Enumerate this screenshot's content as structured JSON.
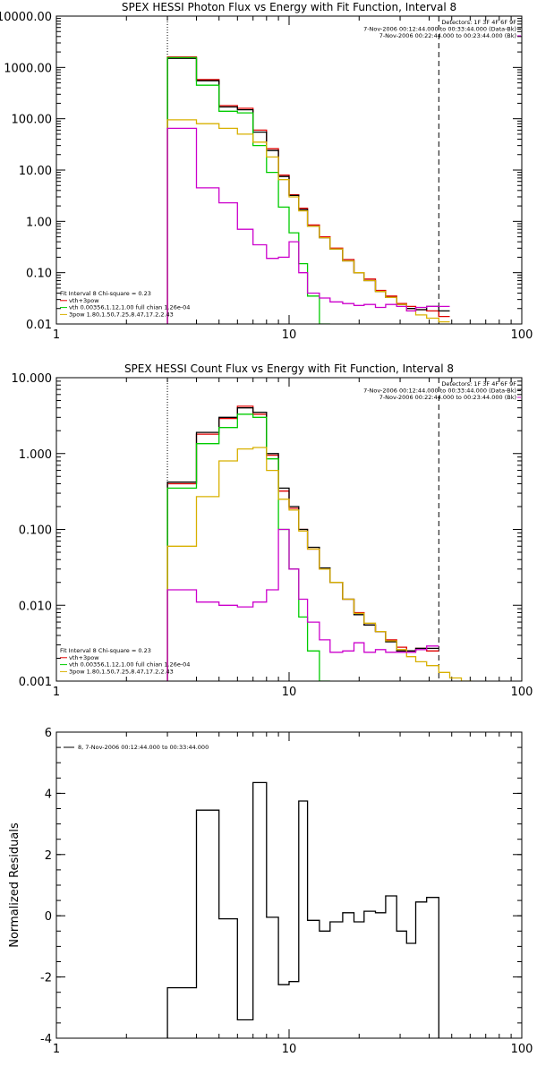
{
  "colors": {
    "black": "#000000",
    "red": "#e00000",
    "green": "#00cc00",
    "yellow": "#d8b000",
    "magenta": "#cc00cc"
  },
  "chart_data": [
    {
      "type": "line",
      "title": "SPEX HESSI Photon Flux vs Energy with Fit Function, Interval 8",
      "xscale": "log",
      "yscale": "log",
      "xlim": [
        1,
        100
      ],
      "ylim": [
        0.01,
        10000
      ],
      "xticks": [
        1,
        10,
        100
      ],
      "xtick_labels": [
        "1",
        "10",
        "100"
      ],
      "yticks": [
        0.01,
        0.1,
        1,
        10,
        100,
        1000,
        10000
      ],
      "ytick_labels": [
        "0.01",
        "0.10",
        "1.00",
        "10.00",
        "100.00",
        "1000.00",
        "10000.00"
      ],
      "vlines": [
        {
          "x": 3.0,
          "style": "dotted"
        },
        {
          "x": 44.0,
          "style": "dashed"
        }
      ],
      "header_lines": [
        "Detectors: 1F 3F 4F 6F 9F",
        "7-Nov-2006 00:12:44.000 to 00:33:44.000 (Data-Bk)",
        "7-Nov-2006 00:22:44.000 to 00:23:44.000 (Bk)"
      ],
      "legend_lines": [
        "Fit Interval  8    Chi-square = 0.23",
        "vth+3pow",
        "vth 0.00356,1.12,1.00  full chian 1.26e-04",
        "3pow 1.80,1.50,7.25,8.47,17.2,2.43"
      ],
      "legend_colors": [
        "black",
        "red",
        "green",
        "yellow"
      ],
      "edges": [
        3.0,
        4.0,
        5.0,
        6.0,
        7.0,
        8.0,
        9.0,
        10.0,
        11.0,
        12.0,
        13.5,
        15.0,
        17.0,
        19.0,
        21.0,
        23.5,
        26.0,
        29.0,
        32.0,
        35.0,
        39.0,
        44.0,
        49.0
      ],
      "series": [
        {
          "color": "red",
          "values": [
            1600,
            580,
            180,
            160,
            60,
            26,
            8.0,
            3.3,
            1.8,
            0.85,
            0.5,
            0.3,
            0.18,
            0.1,
            0.075,
            0.045,
            0.035,
            0.025,
            0.022,
            0.019,
            0.018,
            0.014
          ]
        },
        {
          "color": "black",
          "values": [
            1500,
            550,
            170,
            150,
            55,
            24,
            7.5,
            3.2,
            1.7,
            0.8,
            0.48,
            0.29,
            0.17,
            0.1,
            0.07,
            0.043,
            0.033,
            0.024,
            0.02,
            0.019,
            0.022,
            0.018
          ]
        },
        {
          "color": "green",
          "values": [
            1550,
            450,
            140,
            130,
            30,
            9,
            1.9,
            0.6,
            0.15,
            0.035,
            0.01
          ]
        },
        {
          "color": "yellow",
          "values": [
            95,
            80,
            65,
            50,
            35,
            18,
            6.5,
            3.0,
            1.6,
            0.8,
            0.48,
            0.29,
            0.17,
            0.1,
            0.07,
            0.043,
            0.033,
            0.024,
            0.018,
            0.015,
            0.013,
            0.011,
            0.01
          ]
        },
        {
          "color": "magenta",
          "values": [
            65,
            4.5,
            2.3,
            0.7,
            0.35,
            0.19,
            0.2,
            0.4,
            0.1,
            0.04,
            0.032,
            0.027,
            0.025,
            0.023,
            0.024,
            0.021,
            0.024,
            0.022,
            0.018,
            0.021,
            0.022,
            0.022
          ]
        }
      ]
    },
    {
      "type": "line",
      "title": "SPEX HESSI Count Flux vs Energy with Fit Function, Interval 8",
      "xscale": "log",
      "yscale": "log",
      "xlim": [
        1,
        100
      ],
      "ylim": [
        0.001,
        10
      ],
      "xticks": [
        1,
        10,
        100
      ],
      "xtick_labels": [
        "1",
        "10",
        "100"
      ],
      "yticks": [
        0.001,
        0.01,
        0.1,
        1,
        10
      ],
      "ytick_labels": [
        "0.001",
        "0.010",
        "0.100",
        "1.000",
        "10.000"
      ],
      "vlines": [
        {
          "x": 3.0,
          "style": "dotted"
        },
        {
          "x": 44.0,
          "style": "dashed"
        }
      ],
      "header_lines": [
        "Detectors: 1F 3F 4F 6F 9F",
        "7-Nov-2006 00:12:44.000 to 00:33:44.000 (Data-Bk)",
        "7-Nov-2006 00:22:44.000 to 00:23:44.000 (Bk)"
      ],
      "legend_lines": [
        "Fit Interval  8    Chi-square = 0.23",
        "vth+3pow",
        "vth 0.00356,1.12,1.00  full chian 1.26e-04",
        "3pow 1.80,1.50,7.25,8.47,17.2,2.43"
      ],
      "legend_colors": [
        "black",
        "red",
        "green",
        "yellow"
      ],
      "edges": [
        3.0,
        4.0,
        5.0,
        6.0,
        7.0,
        8.0,
        9.0,
        10.0,
        11.0,
        12.0,
        13.5,
        15.0,
        17.0,
        19.0,
        21.0,
        23.5,
        26.0,
        29.0,
        32.0,
        35.0,
        39.0,
        44.0,
        49.0,
        55.0,
        61.0
      ],
      "series": [
        {
          "color": "red",
          "values": [
            0.4,
            1.8,
            2.9,
            4.2,
            3.3,
            0.95,
            0.32,
            0.19,
            0.1,
            0.055,
            0.03,
            0.02,
            0.012,
            0.008,
            0.0055,
            0.0045,
            0.0035,
            0.0028,
            0.0025,
            0.0027,
            0.0025
          ]
        },
        {
          "color": "black",
          "values": [
            0.42,
            1.9,
            3.0,
            4.0,
            3.5,
            1.0,
            0.35,
            0.2,
            0.1,
            0.058,
            0.031,
            0.02,
            0.012,
            0.0075,
            0.0055,
            0.0045,
            0.0033,
            0.0025,
            0.0025,
            0.0027,
            0.0027
          ]
        },
        {
          "color": "green",
          "values": [
            0.35,
            1.35,
            2.2,
            3.3,
            3.0,
            0.85,
            0.1,
            0.03,
            0.007,
            0.0025,
            0.001
          ]
        },
        {
          "color": "yellow",
          "values": [
            0.06,
            0.27,
            0.8,
            1.15,
            1.2,
            0.6,
            0.25,
            0.18,
            0.095,
            0.055,
            0.03,
            0.02,
            0.012,
            0.0078,
            0.0058,
            0.0045,
            0.0034,
            0.0026,
            0.0021,
            0.0018,
            0.0016,
            0.0013,
            0.0011,
            0.001
          ]
        },
        {
          "color": "magenta",
          "values": [
            0.016,
            0.011,
            0.01,
            0.0095,
            0.011,
            0.016,
            0.1,
            0.03,
            0.012,
            0.006,
            0.0035,
            0.0024,
            0.0025,
            0.0032,
            0.0024,
            0.0026,
            0.0024,
            0.0024,
            0.0024,
            0.0026,
            0.0029
          ]
        }
      ]
    },
    {
      "type": "line",
      "xscale": "log",
      "yscale": "linear",
      "xlim": [
        1,
        100
      ],
      "ylim": [
        -4,
        6
      ],
      "xticks": [
        1,
        10,
        100
      ],
      "xtick_labels": [
        "1",
        "10",
        "100"
      ],
      "yticks": [
        -4,
        -2,
        0,
        2,
        4,
        6
      ],
      "ytick_labels": [
        "-4",
        "-2",
        "0",
        "2",
        "4",
        "6"
      ],
      "ylabel": "Normalized Residuals",
      "legend_lines": [
        "8,  7-Nov-2006 00:12:44.000 to 00:33:44.000"
      ],
      "edges": [
        3.0,
        4.0,
        5.0,
        6.0,
        7.0,
        8.0,
        9.0,
        10.0,
        11.0,
        12.0,
        13.5,
        15.0,
        17.0,
        19.0,
        21.0,
        23.5,
        26.0,
        29.0,
        32.0,
        35.0,
        39.0,
        44.0
      ],
      "series": [
        {
          "color": "black",
          "values": [
            -2.35,
            3.45,
            -0.1,
            -3.4,
            4.35,
            -0.05,
            -2.25,
            -2.15,
            3.75,
            -0.15,
            -0.5,
            -0.2,
            0.1,
            -0.2,
            0.15,
            0.1,
            0.65,
            -0.5,
            -0.9,
            0.45,
            0.6
          ]
        }
      ]
    }
  ]
}
